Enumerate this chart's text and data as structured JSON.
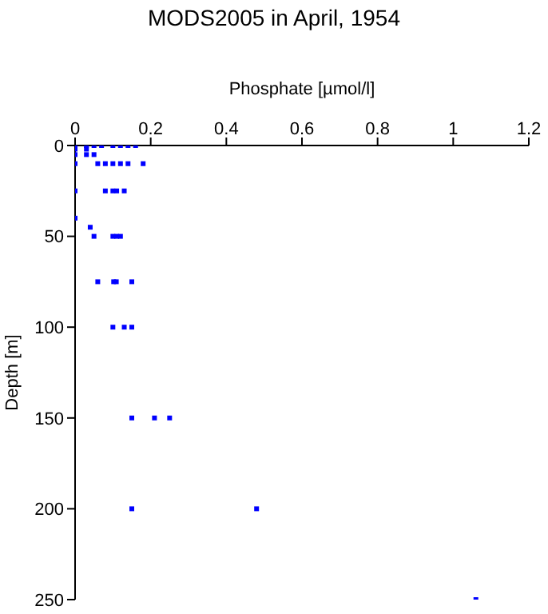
{
  "chart_data": {
    "type": "scatter",
    "title": "MODS2005 in April, 1954",
    "xlabel": "Phosphate [µmol/l]",
    "ylabel": "Depth [m]",
    "xlim": [
      0,
      1.2
    ],
    "xticks": [
      0,
      0.2,
      0.4,
      0.6,
      0.8,
      1,
      1.2
    ],
    "ylim": [
      250,
      0
    ],
    "yticks": [
      0,
      50,
      100,
      150,
      200,
      250
    ],
    "marker": "square",
    "series": [
      {
        "color": "#0000ff",
        "x": [
          0,
          0.03,
          0.05,
          0.07,
          0.1,
          0.12,
          0.14,
          0.16,
          0,
          0.03,
          0,
          0.03,
          0.05,
          0,
          0.06,
          0.08,
          0.1,
          0.12,
          0.14,
          0.18,
          0,
          0.08,
          0.1,
          0.11,
          0.13,
          0,
          0.04,
          0.05,
          0.1,
          0.11,
          0.12,
          0.06,
          0.102,
          0.109,
          0.15,
          0.1,
          0.13,
          0.15,
          0.15,
          0.21,
          0.25,
          0.15,
          0.48,
          1.06
        ],
        "values": [
          0,
          0,
          0,
          0,
          0,
          0,
          0,
          0,
          2,
          2,
          5,
          5,
          5,
          10,
          10,
          10,
          10,
          10,
          10,
          10,
          25,
          25,
          25,
          25,
          25,
          40,
          45,
          50,
          50,
          50,
          50,
          75,
          75,
          75,
          75,
          100,
          100,
          100,
          150,
          150,
          150,
          200,
          200,
          250
        ]
      }
    ]
  }
}
